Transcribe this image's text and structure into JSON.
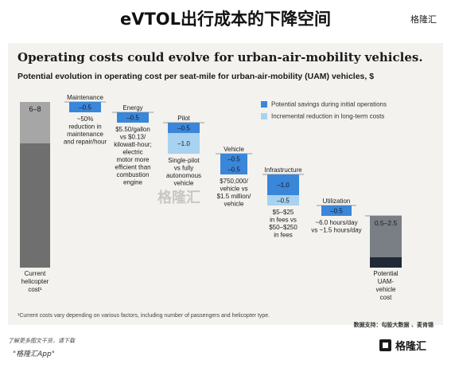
{
  "page_title": "eVTOL出行成本的下降空间",
  "brand_top": "格隆汇",
  "chart_data": {
    "type": "waterfall",
    "title": "Operating costs could evolve for urban-air-mobility vehicles.",
    "subtitle": "Potential evolution in operating cost per seat-mile for urban-air-mobility (UAM) vehicles, $",
    "ylim": [
      0,
      8
    ],
    "start": {
      "label": "Current helicopter cost¹",
      "range_text": "6–8",
      "low": 6,
      "high": 8
    },
    "end": {
      "label": "Potential UAM-vehicle cost",
      "range_text": "0.5–2.5",
      "low": 0.5,
      "high": 2.5
    },
    "categories": [
      {
        "name": "Maintenance",
        "savings": [
          {
            "type": "initial",
            "value": -0.5,
            "label": "–0.5"
          }
        ],
        "note": [
          "~50%",
          "reduction in",
          "maintenance",
          "and repair/hour"
        ]
      },
      {
        "name": "Energy",
        "savings": [
          {
            "type": "initial",
            "value": -0.5,
            "label": "–0.5"
          }
        ],
        "note": [
          "$5.50/gallon",
          "vs $0.13/",
          "kilowatt-hour;",
          "electric",
          "motor more",
          "efficient than",
          "combustion",
          "engine"
        ]
      },
      {
        "name": "Pilot",
        "savings": [
          {
            "type": "initial",
            "value": -0.5,
            "label": "–0.5"
          },
          {
            "type": "long_term",
            "value": -1.0,
            "label": "–1.0"
          }
        ],
        "note": [
          "Single-pilot",
          "vs fully",
          "autonomous",
          "vehicle"
        ]
      },
      {
        "name": "Vehicle",
        "savings": [
          {
            "type": "initial",
            "value": -0.5,
            "label": "–0.5"
          },
          {
            "type": "initial",
            "value": -0.5,
            "label": "–0.5"
          }
        ],
        "note": [
          "$750,000/",
          "vehicle vs",
          "$1.5 million/",
          "vehicle"
        ]
      },
      {
        "name": "Infrastructure",
        "savings": [
          {
            "type": "initial",
            "value": -1.0,
            "label": "–1.0"
          },
          {
            "type": "long_term",
            "value": -0.5,
            "label": "–0.5"
          }
        ],
        "note": [
          "$5–$25",
          "in fees vs",
          "$50–$250",
          "in fees"
        ]
      },
      {
        "name": "Utilization",
        "savings": [
          {
            "type": "initial",
            "value": -0.5,
            "label": "–0.5"
          }
        ],
        "note": [
          "~6.0 hours/day",
          "vs ~1.5 hours/day"
        ]
      }
    ],
    "legend": [
      {
        "key": "initial",
        "label": "Potential savings during initial operations",
        "color": "#3a86d9"
      },
      {
        "key": "long_term",
        "label": "Incremental reduction in long-term costs",
        "color": "#a8d2f0"
      }
    ],
    "legend_position": "top-right",
    "colors": {
      "start_bar_dark": "#6f6f6f",
      "start_bar_light": "#a6a6a6",
      "end_bar_dark": "#1f2a36",
      "end_bar_mid": "#7a7f86",
      "connector": "#444444",
      "dark_label_text": "#ffffff"
    },
    "footnote": "¹Current costs vary depending on various factors, including number of passengers and helicopter type.",
    "source": "数据支持：勾股大数据 、麦肯锡"
  },
  "watermark": "格隆汇",
  "footer": {
    "line1": "了解更多图文干货，请下载",
    "line2": "\"格隆汇App\"",
    "logo": "格隆汇"
  }
}
